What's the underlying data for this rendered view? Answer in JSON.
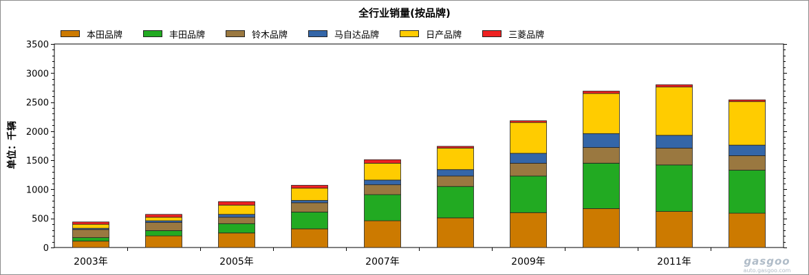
{
  "chart_data": {
    "type": "bar",
    "stacked": true,
    "title": "全行业销量(按品牌)",
    "ylabel": "单位：千辆",
    "xlabel": "",
    "ylim": [
      0,
      3500
    ],
    "yticks": [
      0,
      500,
      1000,
      1500,
      2000,
      2500,
      3000,
      3500
    ],
    "categories": [
      "2003",
      "2004",
      "2005",
      "2006",
      "2007",
      "2008",
      "2009",
      "2010",
      "2011",
      "2012"
    ],
    "x_tick_labels": [
      "2003年",
      "",
      "2005年",
      "",
      "2007年",
      "",
      "2009年",
      "",
      "2011年",
      ""
    ],
    "legend_position": "top-left",
    "grid": false,
    "series": [
      {
        "name": "本田品牌",
        "color": "#cc7a00",
        "values": [
          110,
          200,
          250,
          320,
          460,
          510,
          600,
          670,
          620,
          590
        ]
      },
      {
        "name": "丰田品牌",
        "color": "#22aa22",
        "values": [
          60,
          90,
          160,
          290,
          450,
          540,
          630,
          780,
          800,
          740
        ]
      },
      {
        "name": "铃木品牌",
        "color": "#9a7840",
        "values": [
          140,
          140,
          110,
          160,
          170,
          180,
          220,
          270,
          290,
          250
        ]
      },
      {
        "name": "马自达品牌",
        "color": "#3466a8",
        "values": [
          20,
          30,
          50,
          40,
          80,
          110,
          170,
          240,
          220,
          180
        ]
      },
      {
        "name": "日产品牌",
        "color": "#ffcc00",
        "values": [
          70,
          60,
          160,
          210,
          290,
          370,
          530,
          690,
          830,
          750
        ]
      },
      {
        "name": "三菱品牌",
        "color": "#ee2222",
        "values": [
          40,
          50,
          60,
          50,
          60,
          30,
          30,
          40,
          40,
          30
        ]
      }
    ]
  },
  "watermark": {
    "logo": "gasgoo",
    "url": "auto.gasgoo.com"
  }
}
